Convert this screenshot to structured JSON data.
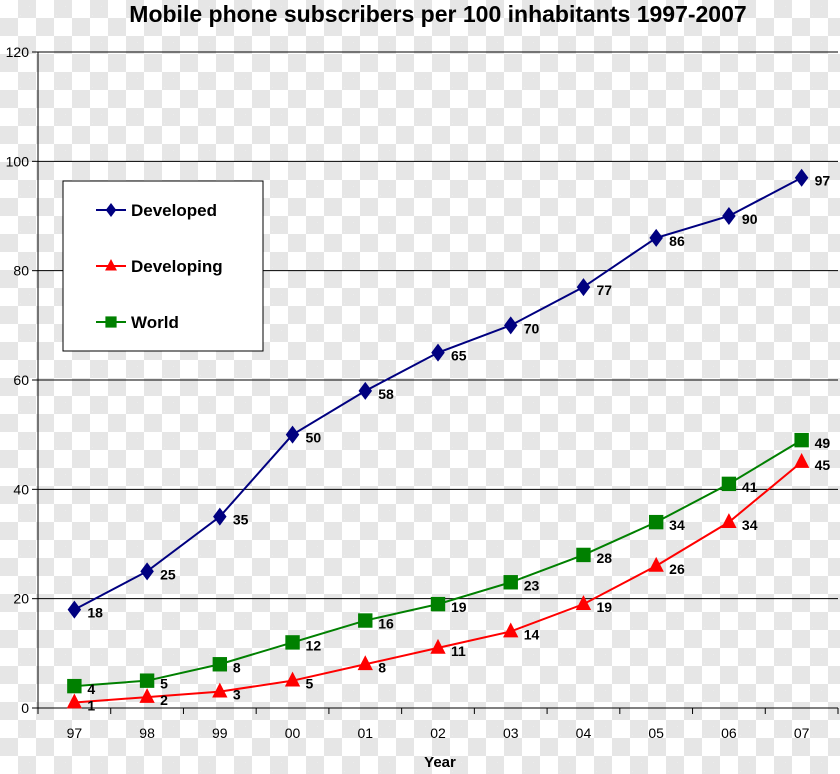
{
  "chart_data": {
    "type": "line",
    "title": "Mobile phone subscribers per 100 inhabitants 1997-2007",
    "xlabel": "Year",
    "ylabel": "",
    "categories": [
      "97",
      "98",
      "99",
      "00",
      "01",
      "02",
      "03",
      "04",
      "05",
      "06",
      "07"
    ],
    "ylim": [
      0,
      120
    ],
    "yticks": [
      0,
      20,
      40,
      60,
      80,
      100,
      120
    ],
    "grid": true,
    "legend_position": "top-left",
    "series": [
      {
        "name": "Developed",
        "color": "#000080",
        "marker": "diamond",
        "values": [
          18,
          25,
          35,
          50,
          58,
          65,
          70,
          77,
          86,
          90,
          97
        ]
      },
      {
        "name": "Developing",
        "color": "#ff0000",
        "marker": "triangle",
        "values": [
          1,
          2,
          3,
          5,
          8,
          11,
          14,
          19,
          26,
          34,
          45
        ]
      },
      {
        "name": "World",
        "color": "#008000",
        "marker": "square",
        "values": [
          4,
          5,
          8,
          12,
          16,
          19,
          23,
          28,
          34,
          41,
          49
        ]
      }
    ]
  }
}
